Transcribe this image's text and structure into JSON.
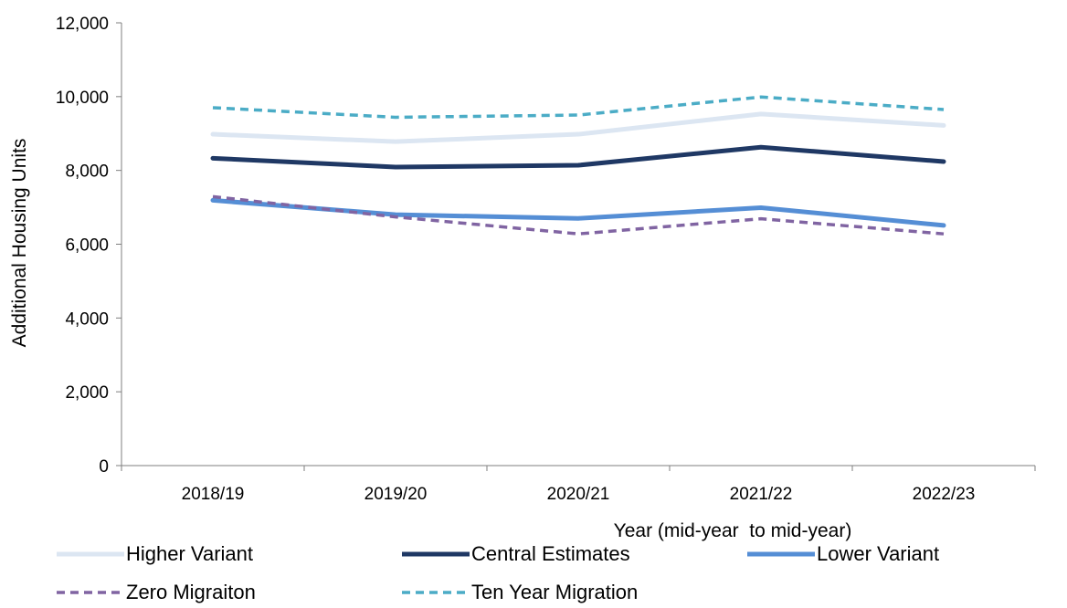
{
  "chart_data": {
    "type": "line",
    "title": "",
    "xlabel": "Year (mid-year  to mid-year)",
    "ylabel": "Additional Housing Units",
    "categories": [
      "2018/19",
      "2019/20",
      "2020/21",
      "2021/22",
      "2022/23"
    ],
    "ylim": [
      0,
      12000
    ],
    "yticks": [
      0,
      2000,
      4000,
      6000,
      8000,
      10000,
      12000
    ],
    "ytick_labels": [
      "0",
      "2,000",
      "4,000",
      "6,000",
      "8,000",
      "10,000",
      "12,000"
    ],
    "grid": false,
    "legend_position": "bottom",
    "series": [
      {
        "name": "Higher Variant",
        "values": [
          8980,
          8780,
          8980,
          9530,
          9220
        ],
        "color": "#dce6f2",
        "dash": "solid"
      },
      {
        "name": "Central Estimates",
        "values": [
          8330,
          8090,
          8140,
          8630,
          8240
        ],
        "color": "#1f3864",
        "dash": "solid"
      },
      {
        "name": "Lower Variant",
        "values": [
          7190,
          6800,
          6700,
          6990,
          6510
        ],
        "color": "#558ed5",
        "dash": "solid"
      },
      {
        "name": "Zero Migraiton",
        "values": [
          7290,
          6740,
          6280,
          6690,
          6280
        ],
        "color": "#8064a2",
        "dash": "dashed"
      },
      {
        "name": "Ten Year Migration",
        "values": [
          9700,
          9440,
          9500,
          9990,
          9650
        ],
        "color": "#4bacc6",
        "dash": "dashed"
      }
    ]
  }
}
